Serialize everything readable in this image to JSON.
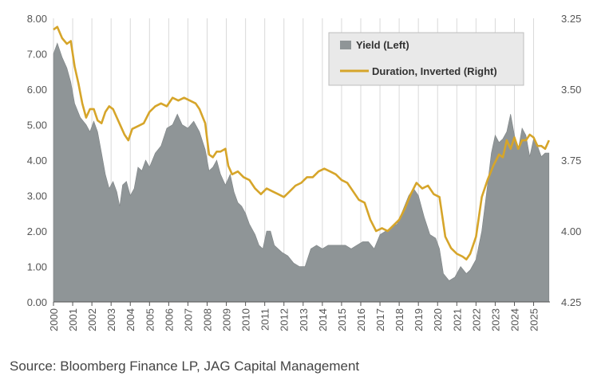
{
  "chart_data": {
    "type": "area",
    "title": "",
    "xlabel": "",
    "ylabel": "",
    "x_ticks": [
      "2000",
      "2001",
      "2002",
      "2003",
      "2004",
      "2005",
      "2006",
      "2007",
      "2008",
      "2009",
      "2010",
      "2011",
      "2012",
      "2013",
      "2014",
      "2015",
      "2016",
      "2017",
      "2018",
      "2019",
      "2020",
      "2021",
      "2022",
      "2023",
      "2024",
      "2025"
    ],
    "y_left_ticks": [
      "0.00",
      "1.00",
      "2.00",
      "3.00",
      "4.00",
      "5.00",
      "6.00",
      "7.00",
      "8.00"
    ],
    "y_right_ticks": [
      "3.25",
      "3.50",
      "3.75",
      "4.00",
      "4.25"
    ],
    "ylim_left": [
      0,
      8
    ],
    "ylim_right_inverted": [
      3.25,
      4.25
    ],
    "xlim": [
      2000,
      2025.85
    ],
    "grid": "vertical",
    "legend_position": "top-right",
    "colors": {
      "yield": "#8f9597",
      "duration": "#d6a52a",
      "grid": "#d9d9d9",
      "axis": "#555555"
    },
    "series": [
      {
        "name": "Yield (Left)",
        "axis": "left",
        "kind": "area",
        "x": [
          2000.0,
          2000.2,
          2000.45,
          2000.7,
          2000.9,
          2001.1,
          2001.4,
          2001.7,
          2001.9,
          2002.1,
          2002.3,
          2002.5,
          2002.7,
          2002.9,
          2003.1,
          2003.3,
          2003.45,
          2003.6,
          2003.8,
          2004.0,
          2004.2,
          2004.4,
          2004.6,
          2004.8,
          2005.0,
          2005.3,
          2005.6,
          2005.9,
          2006.2,
          2006.45,
          2006.7,
          2007.0,
          2007.3,
          2007.6,
          2007.9,
          2008.1,
          2008.3,
          2008.5,
          2008.7,
          2008.95,
          2009.2,
          2009.4,
          2009.6,
          2009.8,
          2010.0,
          2010.2,
          2010.5,
          2010.7,
          2010.9,
          2011.1,
          2011.3,
          2011.5,
          2011.7,
          2011.9,
          2012.2,
          2012.5,
          2012.8,
          2013.1,
          2013.4,
          2013.7,
          2014.0,
          2014.3,
          2014.6,
          2014.9,
          2015.2,
          2015.5,
          2015.8,
          2016.1,
          2016.4,
          2016.7,
          2017.0,
          2017.3,
          2017.6,
          2017.9,
          2018.2,
          2018.5,
          2018.75,
          2019.0,
          2019.3,
          2019.6,
          2019.9,
          2020.1,
          2020.3,
          2020.6,
          2020.9,
          2021.2,
          2021.5,
          2021.7,
          2022.0,
          2022.3,
          2022.6,
          2022.8,
          2023.0,
          2023.2,
          2023.4,
          2023.6,
          2023.8,
          2024.0,
          2024.2,
          2024.4,
          2024.6,
          2024.8,
          2025.0,
          2025.2,
          2025.4,
          2025.6,
          2025.8
        ],
        "y": [
          7.0,
          7.3,
          6.9,
          6.6,
          6.2,
          5.6,
          5.2,
          5.0,
          4.8,
          5.1,
          4.8,
          4.2,
          3.6,
          3.2,
          3.4,
          3.1,
          2.7,
          3.3,
          3.4,
          3.0,
          3.2,
          3.8,
          3.7,
          4.0,
          3.8,
          4.2,
          4.4,
          4.9,
          5.0,
          5.3,
          5.0,
          4.9,
          5.1,
          4.8,
          4.3,
          3.7,
          3.8,
          4.0,
          3.6,
          3.3,
          3.6,
          3.1,
          2.8,
          2.7,
          2.5,
          2.2,
          1.9,
          1.6,
          1.5,
          2.0,
          2.0,
          1.6,
          1.5,
          1.4,
          1.3,
          1.1,
          1.0,
          1.0,
          1.5,
          1.6,
          1.5,
          1.6,
          1.6,
          1.6,
          1.6,
          1.5,
          1.6,
          1.7,
          1.7,
          1.5,
          1.9,
          2.0,
          2.1,
          2.2,
          2.6,
          3.0,
          3.2,
          3.0,
          2.4,
          1.9,
          1.8,
          1.5,
          0.8,
          0.6,
          0.7,
          1.0,
          0.8,
          0.9,
          1.2,
          2.0,
          3.3,
          4.2,
          4.7,
          4.5,
          4.6,
          4.8,
          5.3,
          4.7,
          4.3,
          4.9,
          4.7,
          4.1,
          4.6,
          4.4,
          4.1,
          4.2,
          4.2
        ]
      },
      {
        "name": "Duration, Inverted (Right)",
        "axis": "right",
        "kind": "line",
        "x": [
          2000.0,
          2000.2,
          2000.45,
          2000.7,
          2000.9,
          2001.1,
          2001.3,
          2001.5,
          2001.7,
          2001.9,
          2002.1,
          2002.3,
          2002.5,
          2002.7,
          2002.9,
          2003.1,
          2003.3,
          2003.5,
          2003.7,
          2003.9,
          2004.1,
          2004.4,
          2004.7,
          2005.0,
          2005.3,
          2005.6,
          2005.9,
          2006.2,
          2006.5,
          2006.8,
          2007.1,
          2007.4,
          2007.6,
          2007.9,
          2008.1,
          2008.3,
          2008.5,
          2008.7,
          2008.95,
          2009.1,
          2009.3,
          2009.6,
          2009.9,
          2010.2,
          2010.5,
          2010.8,
          2011.1,
          2011.4,
          2011.7,
          2012.0,
          2012.3,
          2012.6,
          2012.9,
          2013.2,
          2013.5,
          2013.8,
          2014.1,
          2014.4,
          2014.7,
          2015.0,
          2015.3,
          2015.6,
          2015.9,
          2016.2,
          2016.5,
          2016.8,
          2017.1,
          2017.4,
          2017.7,
          2018.0,
          2018.3,
          2018.6,
          2018.9,
          2019.2,
          2019.5,
          2019.8,
          2020.1,
          2020.4,
          2020.7,
          2021.0,
          2021.3,
          2021.5,
          2021.7,
          2022.0,
          2022.3,
          2022.6,
          2022.9,
          2023.2,
          2023.4,
          2023.6,
          2023.8,
          2024.0,
          2024.2,
          2024.4,
          2024.6,
          2024.8,
          2025.0,
          2025.2,
          2025.4,
          2025.6,
          2025.8
        ],
        "y": [
          3.29,
          3.28,
          3.32,
          3.34,
          3.33,
          3.42,
          3.48,
          3.55,
          3.6,
          3.57,
          3.57,
          3.61,
          3.62,
          3.58,
          3.56,
          3.57,
          3.6,
          3.63,
          3.66,
          3.68,
          3.64,
          3.63,
          3.62,
          3.58,
          3.56,
          3.55,
          3.56,
          3.53,
          3.54,
          3.53,
          3.54,
          3.55,
          3.57,
          3.62,
          3.73,
          3.74,
          3.72,
          3.72,
          3.71,
          3.77,
          3.8,
          3.79,
          3.81,
          3.82,
          3.85,
          3.87,
          3.85,
          3.86,
          3.87,
          3.88,
          3.86,
          3.84,
          3.83,
          3.81,
          3.81,
          3.79,
          3.78,
          3.79,
          3.8,
          3.82,
          3.83,
          3.86,
          3.89,
          3.9,
          3.96,
          4.0,
          3.99,
          4.0,
          3.98,
          3.96,
          3.92,
          3.87,
          3.83,
          3.85,
          3.84,
          3.87,
          3.88,
          4.02,
          4.06,
          4.08,
          4.09,
          4.1,
          4.08,
          4.02,
          3.88,
          3.82,
          3.77,
          3.73,
          3.74,
          3.68,
          3.71,
          3.67,
          3.71,
          3.68,
          3.68,
          3.66,
          3.67,
          3.7,
          3.7,
          3.71,
          3.68
        ]
      }
    ]
  },
  "source": "Source: Bloomberg Finance LP, JAG Capital Management"
}
